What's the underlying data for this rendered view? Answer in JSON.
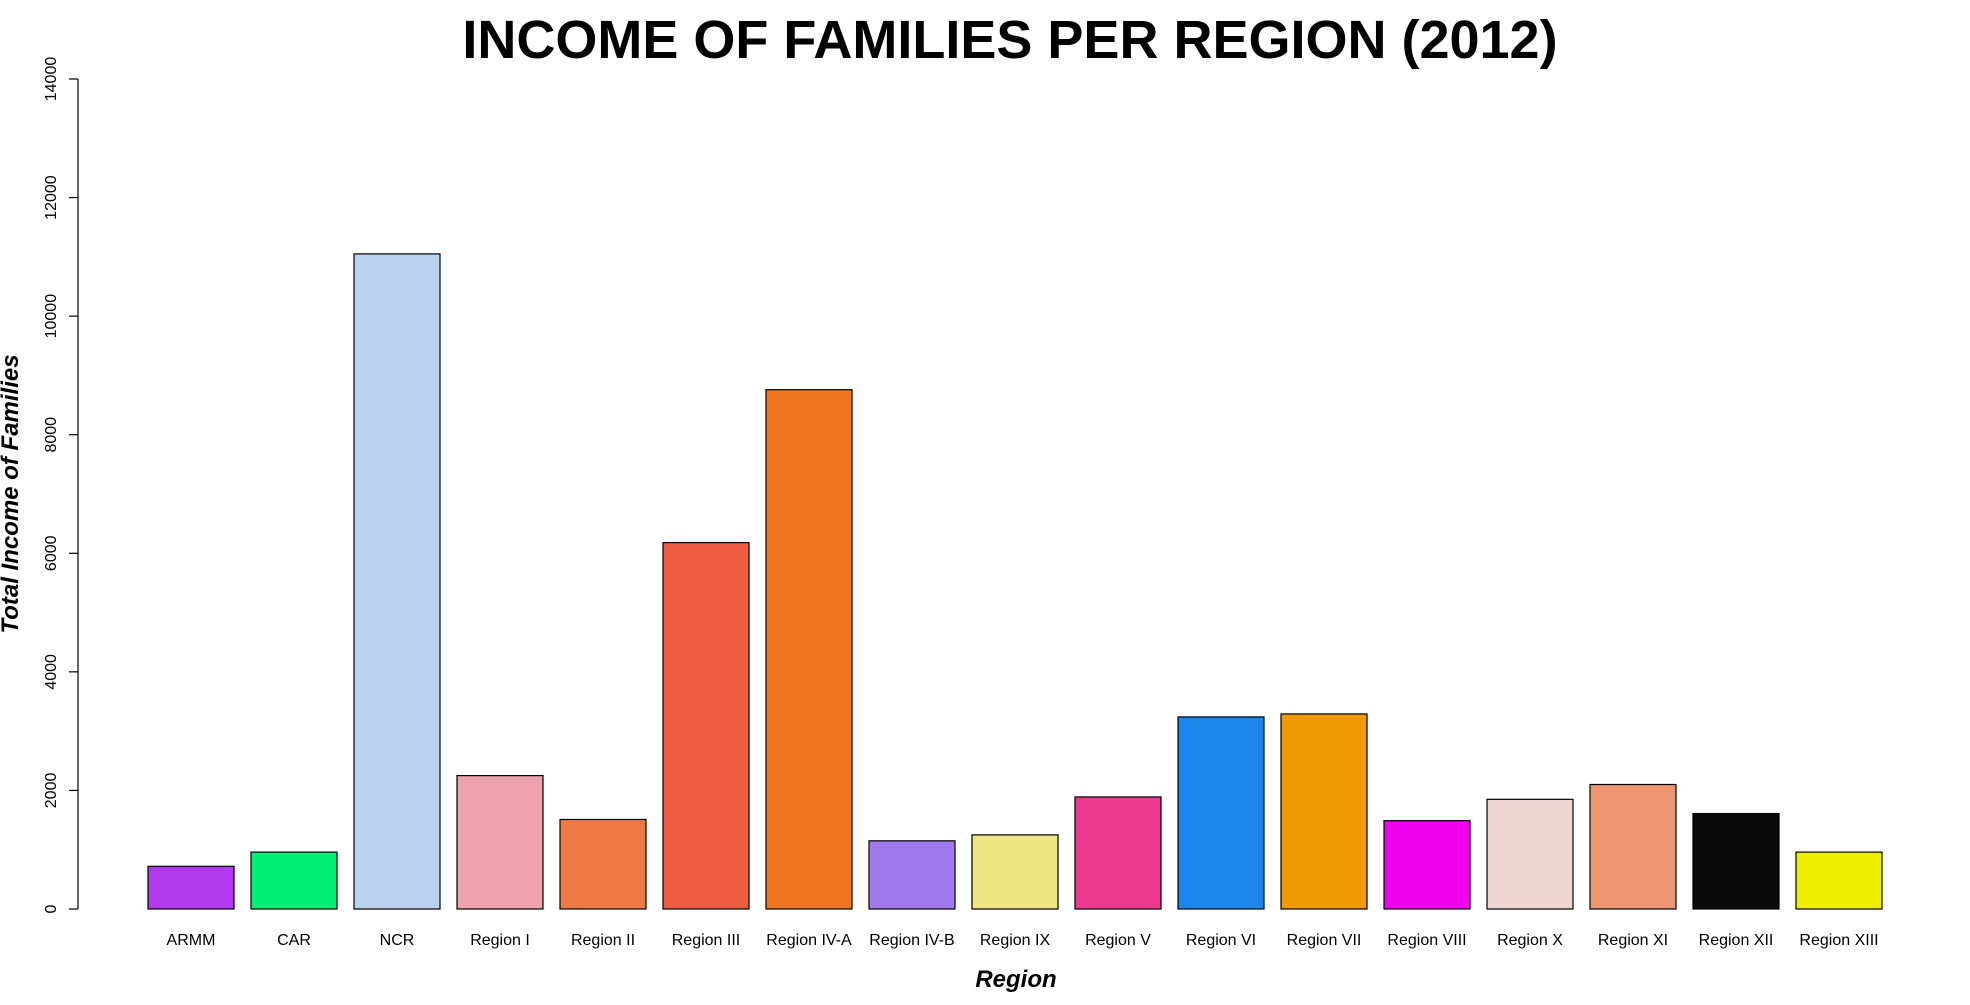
{
  "chart_data": {
    "type": "bar",
    "title": "INCOME OF FAMILIES PER REGION (2012)",
    "xlabel": "Region",
    "ylabel": "Total Income of Families",
    "ylim": [
      0,
      14000
    ],
    "yticks": [
      0,
      2000,
      4000,
      6000,
      8000,
      10000,
      12000,
      14000
    ],
    "grid": false,
    "categories": [
      "ARMM",
      "CAR",
      "NCR",
      "Region I",
      "Region II",
      "Region III",
      "Region IV-A",
      "Region IV-B",
      "Region IX",
      "Region V",
      "Region VI",
      "Region VII",
      "Region VIII",
      "Region X",
      "Region XI",
      "Region XII",
      "Region XIII"
    ],
    "values": [
      720,
      960,
      11050,
      2250,
      1510,
      6180,
      8760,
      1150,
      1250,
      1890,
      3240,
      3290,
      1490,
      1850,
      2100,
      1610,
      960
    ],
    "colors": [
      "#b23aee",
      "#00ee76",
      "#b9d3ee",
      "#eea2ad",
      "#ee7942",
      "#ee5c42",
      "#ee7621",
      "#9f79ee",
      "#eee685",
      "#ee3a8c",
      "#1c86ee",
      "#ee9a00",
      "#ee00ee",
      "#eed5d2",
      "#ee9572",
      "#0a0a0a",
      "#eeee00"
    ]
  }
}
